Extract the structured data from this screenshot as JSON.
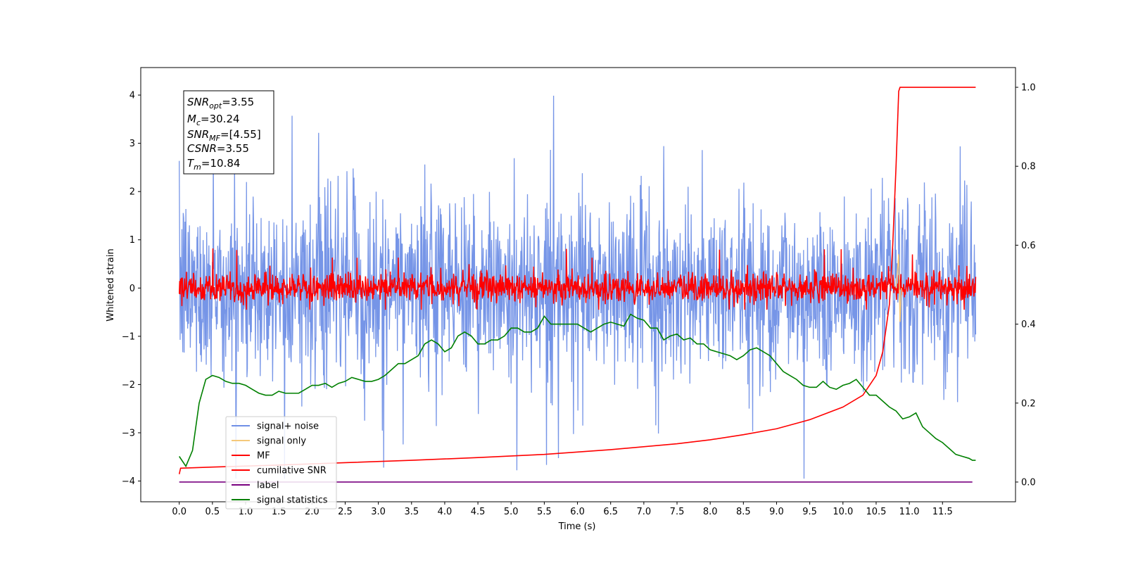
{
  "chart_data": {
    "type": "line",
    "xlabel": "Time (s)",
    "ylabel_left": "Whitened strain",
    "x_ticks": [
      "0.0",
      "0.5",
      "1.0",
      "1.5",
      "2.0",
      "2.5",
      "3.0",
      "3.5",
      "4.0",
      "4.5",
      "5.0",
      "5.5",
      "6.0",
      "6.5",
      "7.0",
      "7.5",
      "8.0",
      "8.5",
      "9.0",
      "9.5",
      "10.0",
      "10.5",
      "11.0",
      "11.5"
    ],
    "xlim": [
      -0.58,
      12.6
    ],
    "ylim_left": [
      -4.43,
      4.57
    ],
    "ylim_right": [
      -0.05,
      1.05
    ],
    "y_ticks_left": [
      "−4",
      "−3",
      "−2",
      "−1",
      "0",
      "1",
      "2",
      "3",
      "4"
    ],
    "y_ticks_right": [
      "0.0",
      "0.2",
      "0.4",
      "0.6",
      "0.8",
      "1.0"
    ],
    "grid": false,
    "legend_position": "lower-left",
    "annotation": {
      "snr_opt": {
        "sym": "SNR",
        "sub": "opt",
        "value": "=3.55"
      },
      "mc": {
        "sym": "M",
        "sub": "c",
        "value": "=30.24"
      },
      "snr_mf": {
        "sym": "SNR",
        "sub": "MF",
        "value": "=[4.55]"
      },
      "csnr": {
        "sym": "CSNR",
        "sub": "",
        "value": "=3.55"
      },
      "tm": {
        "sym": "T",
        "sub": "m",
        "value": "=10.84"
      }
    },
    "series": [
      {
        "name": "signal+ noise",
        "color": "#6f8fe6",
        "axis": "left",
        "note": "noise band roughly ±2.2, spikes to ±4"
      },
      {
        "name": "signal only",
        "color": "#f5c87a",
        "axis": "left",
        "points": [
          [
            10.8,
            0
          ],
          [
            10.84,
            0.7
          ],
          [
            10.86,
            -0.7
          ],
          [
            10.88,
            0
          ]
        ]
      },
      {
        "name": "MF",
        "color": "#ff0000",
        "axis": "left",
        "note": "band roughly ±0.4"
      },
      {
        "name": "cumilative SNR",
        "color": "#ff0000",
        "axis": "right",
        "points": [
          [
            0.0,
            0.02
          ],
          [
            0.02,
            0.035
          ],
          [
            0.5,
            0.038
          ],
          [
            1.5,
            0.043
          ],
          [
            2.5,
            0.049
          ],
          [
            3.5,
            0.055
          ],
          [
            4.5,
            0.062
          ],
          [
            5.5,
            0.07
          ],
          [
            6.5,
            0.082
          ],
          [
            7.5,
            0.097
          ],
          [
            8.0,
            0.107
          ],
          [
            8.5,
            0.12
          ],
          [
            9.0,
            0.135
          ],
          [
            9.5,
            0.158
          ],
          [
            10.0,
            0.19
          ],
          [
            10.3,
            0.22
          ],
          [
            10.5,
            0.27
          ],
          [
            10.6,
            0.33
          ],
          [
            10.7,
            0.45
          ],
          [
            10.75,
            0.6
          ],
          [
            10.8,
            0.8
          ],
          [
            10.84,
            0.99
          ],
          [
            10.86,
            1.0
          ],
          [
            12.0,
            1.0
          ]
        ]
      },
      {
        "name": "label",
        "color": "#7a0080",
        "axis": "right",
        "points": [
          [
            0.0,
            0.0
          ],
          [
            11.95,
            0.0
          ]
        ]
      },
      {
        "name": "signal statistics",
        "color": "#008000",
        "axis": "right",
        "points": [
          [
            0.0,
            0.065
          ],
          [
            0.1,
            0.04
          ],
          [
            0.2,
            0.08
          ],
          [
            0.3,
            0.2
          ],
          [
            0.4,
            0.26
          ],
          [
            0.5,
            0.27
          ],
          [
            0.6,
            0.265
          ],
          [
            0.7,
            0.255
          ],
          [
            0.8,
            0.25
          ],
          [
            0.9,
            0.25
          ],
          [
            1.0,
            0.245
          ],
          [
            1.1,
            0.235
          ],
          [
            1.2,
            0.225
          ],
          [
            1.3,
            0.22
          ],
          [
            1.4,
            0.22
          ],
          [
            1.5,
            0.23
          ],
          [
            1.6,
            0.225
          ],
          [
            1.7,
            0.225
          ],
          [
            1.8,
            0.225
          ],
          [
            1.9,
            0.235
          ],
          [
            2.0,
            0.245
          ],
          [
            2.1,
            0.245
          ],
          [
            2.2,
            0.25
          ],
          [
            2.3,
            0.24
          ],
          [
            2.4,
            0.25
          ],
          [
            2.5,
            0.255
          ],
          [
            2.6,
            0.265
          ],
          [
            2.7,
            0.26
          ],
          [
            2.8,
            0.255
          ],
          [
            2.9,
            0.255
          ],
          [
            3.0,
            0.26
          ],
          [
            3.1,
            0.27
          ],
          [
            3.2,
            0.285
          ],
          [
            3.3,
            0.3
          ],
          [
            3.4,
            0.3
          ],
          [
            3.5,
            0.31
          ],
          [
            3.6,
            0.32
          ],
          [
            3.7,
            0.35
          ],
          [
            3.8,
            0.36
          ],
          [
            3.9,
            0.35
          ],
          [
            4.0,
            0.33
          ],
          [
            4.1,
            0.34
          ],
          [
            4.2,
            0.37
          ],
          [
            4.3,
            0.38
          ],
          [
            4.4,
            0.37
          ],
          [
            4.5,
            0.35
          ],
          [
            4.6,
            0.35
          ],
          [
            4.7,
            0.36
          ],
          [
            4.8,
            0.36
          ],
          [
            4.9,
            0.37
          ],
          [
            5.0,
            0.39
          ],
          [
            5.1,
            0.39
          ],
          [
            5.2,
            0.38
          ],
          [
            5.3,
            0.38
          ],
          [
            5.4,
            0.39
          ],
          [
            5.5,
            0.42
          ],
          [
            5.6,
            0.4
          ],
          [
            5.7,
            0.4
          ],
          [
            5.8,
            0.4
          ],
          [
            5.9,
            0.4
          ],
          [
            6.0,
            0.4
          ],
          [
            6.1,
            0.39
          ],
          [
            6.2,
            0.38
          ],
          [
            6.3,
            0.39
          ],
          [
            6.4,
            0.4
          ],
          [
            6.5,
            0.405
          ],
          [
            6.6,
            0.4
          ],
          [
            6.7,
            0.395
          ],
          [
            6.8,
            0.425
          ],
          [
            6.9,
            0.415
          ],
          [
            7.0,
            0.41
          ],
          [
            7.1,
            0.39
          ],
          [
            7.2,
            0.39
          ],
          [
            7.3,
            0.36
          ],
          [
            7.4,
            0.37
          ],
          [
            7.5,
            0.375
          ],
          [
            7.6,
            0.36
          ],
          [
            7.7,
            0.365
          ],
          [
            7.8,
            0.35
          ],
          [
            7.9,
            0.35
          ],
          [
            8.0,
            0.335
          ],
          [
            8.1,
            0.33
          ],
          [
            8.2,
            0.325
          ],
          [
            8.3,
            0.32
          ],
          [
            8.4,
            0.31
          ],
          [
            8.5,
            0.32
          ],
          [
            8.6,
            0.335
          ],
          [
            8.7,
            0.34
          ],
          [
            8.8,
            0.33
          ],
          [
            8.9,
            0.32
          ],
          [
            9.0,
            0.3
          ],
          [
            9.1,
            0.28
          ],
          [
            9.2,
            0.27
          ],
          [
            9.3,
            0.26
          ],
          [
            9.4,
            0.245
          ],
          [
            9.5,
            0.24
          ],
          [
            9.6,
            0.24
          ],
          [
            9.7,
            0.255
          ],
          [
            9.8,
            0.24
          ],
          [
            9.9,
            0.235
          ],
          [
            10.0,
            0.245
          ],
          [
            10.1,
            0.25
          ],
          [
            10.2,
            0.26
          ],
          [
            10.3,
            0.24
          ],
          [
            10.4,
            0.22
          ],
          [
            10.5,
            0.22
          ],
          [
            10.6,
            0.205
          ],
          [
            10.7,
            0.19
          ],
          [
            10.8,
            0.18
          ],
          [
            10.9,
            0.16
          ],
          [
            11.0,
            0.165
          ],
          [
            11.1,
            0.175
          ],
          [
            11.2,
            0.14
          ],
          [
            11.3,
            0.125
          ],
          [
            11.4,
            0.11
          ],
          [
            11.5,
            0.1
          ],
          [
            11.6,
            0.085
          ],
          [
            11.7,
            0.07
          ],
          [
            11.8,
            0.065
          ],
          [
            11.9,
            0.06
          ],
          [
            11.95,
            0.055
          ],
          [
            12.0,
            0.055
          ]
        ]
      }
    ],
    "legend": [
      "signal+ noise",
      "signal only",
      "MF",
      "cumilative SNR",
      "label",
      "signal statistics"
    ]
  }
}
